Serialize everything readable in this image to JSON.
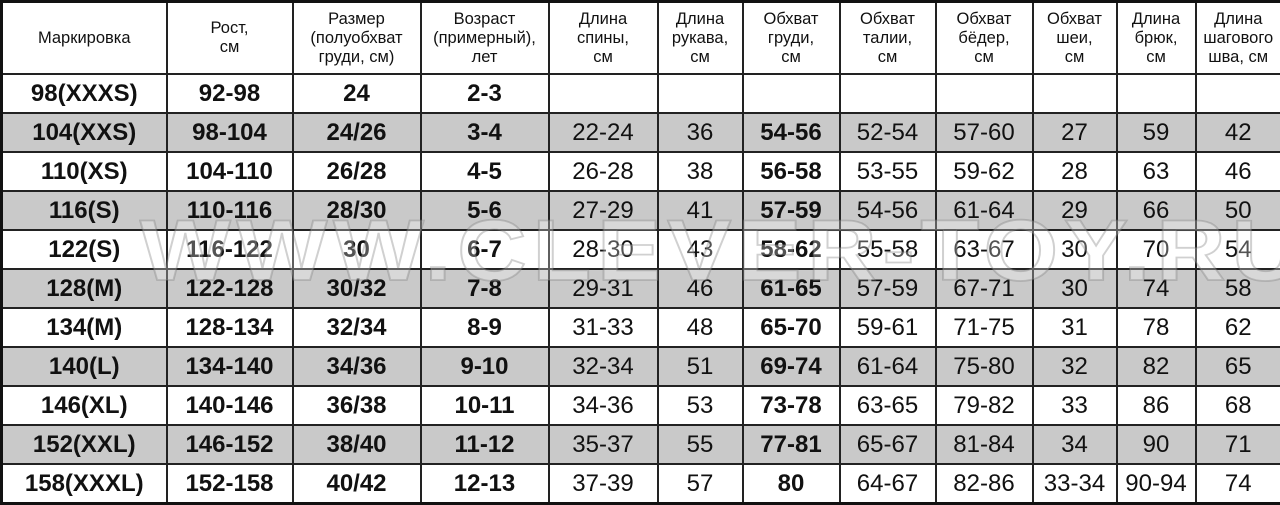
{
  "table": {
    "headers": [
      "Маркировка",
      "Рост,\nсм",
      "Размер\n(полуобхват\nгруди, см)",
      "Возраст\n(примерный),\nлет",
      "Длина\nспины,\nсм",
      "Длина\nрукава,\nсм",
      "Обхват\nгруди,\nсм",
      "Обхват\nталии,\nсм",
      "Обхват\nбёдер,\nсм",
      "Обхват\nшеи,\nсм",
      "Длина\nбрюк,\nсм",
      "Длина\nшагового\nшва, см"
    ],
    "rows": [
      [
        "98(XXXS)",
        "92-98",
        "24",
        "2-3",
        "",
        "",
        "",
        "",
        "",
        "",
        "",
        ""
      ],
      [
        "104(XXS)",
        "98-104",
        "24/26",
        "3-4",
        "22-24",
        "36",
        "54-56",
        "52-54",
        "57-60",
        "27",
        "59",
        "42"
      ],
      [
        "110(XS)",
        "104-110",
        "26/28",
        "4-5",
        "26-28",
        "38",
        "56-58",
        "53-55",
        "59-62",
        "28",
        "63",
        "46"
      ],
      [
        "116(S)",
        "110-116",
        "28/30",
        "5-6",
        "27-29",
        "41",
        "57-59",
        "54-56",
        "61-64",
        "29",
        "66",
        "50"
      ],
      [
        "122(S)",
        "116-122",
        "30",
        "6-7",
        "28-30",
        "43",
        "58-62",
        "55-58",
        "63-67",
        "30",
        "70",
        "54"
      ],
      [
        "128(M)",
        "122-128",
        "30/32",
        "7-8",
        "29-31",
        "46",
        "61-65",
        "57-59",
        "67-71",
        "30",
        "74",
        "58"
      ],
      [
        "134(M)",
        "128-134",
        "32/34",
        "8-9",
        "31-33",
        "48",
        "65-70",
        "59-61",
        "71-75",
        "31",
        "78",
        "62"
      ],
      [
        "140(L)",
        "134-140",
        "34/36",
        "9-10",
        "32-34",
        "51",
        "69-74",
        "61-64",
        "75-80",
        "32",
        "82",
        "65"
      ],
      [
        "146(XL)",
        "140-146",
        "36/38",
        "10-11",
        "34-36",
        "53",
        "73-78",
        "63-65",
        "79-82",
        "33",
        "86",
        "68"
      ],
      [
        "152(XXL)",
        "146-152",
        "38/40",
        "11-12",
        "35-37",
        "55",
        "77-81",
        "65-67",
        "81-84",
        "34",
        "90",
        "71"
      ],
      [
        "158(XXXL)",
        "152-158",
        "40/42",
        "12-13",
        "37-39",
        "57",
        "80",
        "64-67",
        "82-86",
        "33-34",
        "90-94",
        "74"
      ]
    ],
    "shaded_row_color": "#c9c9c9"
  },
  "watermark": "WWW.CLEVER-TOY.RU"
}
